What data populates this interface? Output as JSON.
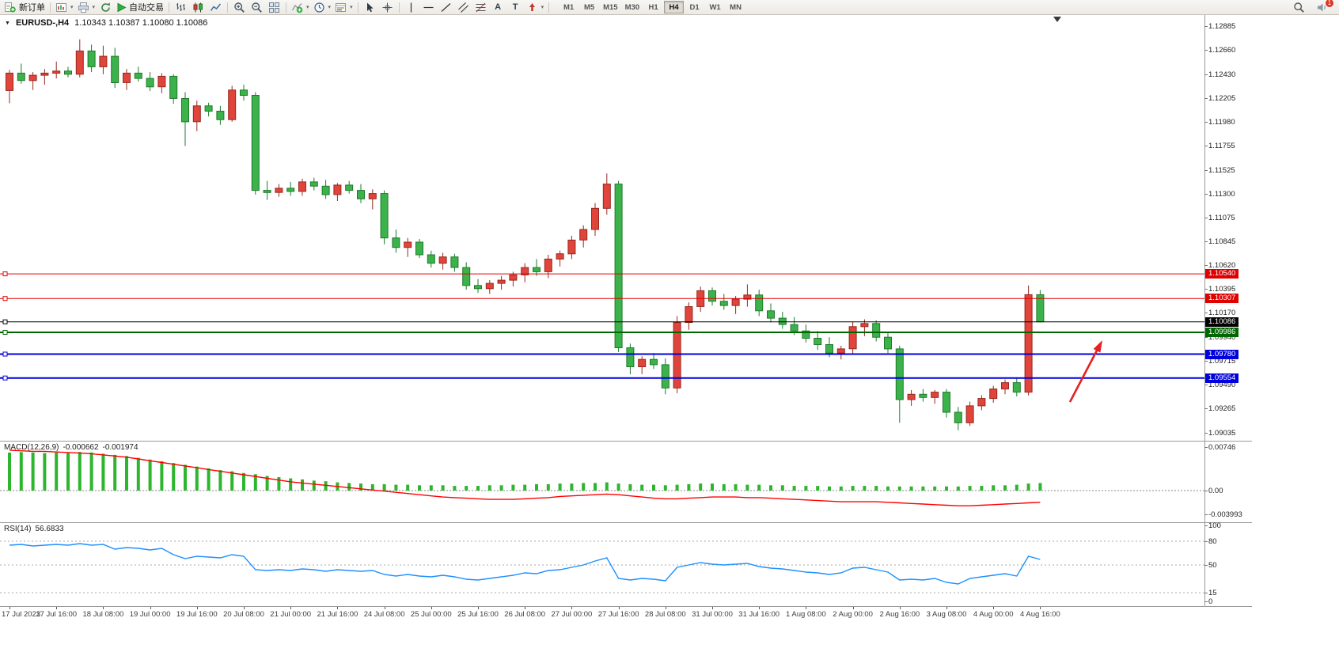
{
  "toolbar": {
    "new_order_label": "新订单",
    "auto_trading_label": "自动交易",
    "text_tool_label": "A",
    "label_tool_label": "T",
    "timeframes": [
      "M1",
      "M5",
      "M15",
      "M30",
      "H1",
      "H4",
      "D1",
      "W1",
      "MN"
    ],
    "active_timeframe": "H4",
    "notification_badge": "1"
  },
  "chart_header": {
    "symbol": "EURUSD-,H4",
    "ohlc": "1.10343 1.10387 1.10080 1.10086"
  },
  "price_axis_labels": [
    "1.12885",
    "1.12660",
    "1.12430",
    "1.12205",
    "1.11980",
    "1.11755",
    "1.11525",
    "1.11300",
    "1.11075",
    "1.10845",
    "1.10620",
    "1.10395",
    "1.10170",
    "1.09940",
    "1.09715",
    "1.09490",
    "1.09265",
    "1.09035"
  ],
  "price_tags": [
    {
      "text": "1.10540",
      "price": 1.1054,
      "bg": "#e00000"
    },
    {
      "text": "1.10307",
      "price": 1.10307,
      "bg": "#e00000"
    },
    {
      "text": "1.10086",
      "price": 1.10086,
      "bg": "#000000"
    },
    {
      "text": "1.09986",
      "price": 1.09986,
      "bg": "#006600"
    },
    {
      "text": "1.09780",
      "price": 1.0978,
      "bg": "#0000dd"
    },
    {
      "text": "1.09554",
      "price": 1.09554,
      "bg": "#0000dd"
    }
  ],
  "hlines": [
    {
      "price": 1.1054,
      "color": "#e00000",
      "w": 1
    },
    {
      "price": 1.10307,
      "color": "#e00000",
      "w": 1
    },
    {
      "price": 1.10086,
      "color": "#000000",
      "w": 1
    },
    {
      "price": 1.09986,
      "color": "#006600",
      "w": 2
    },
    {
      "price": 1.0978,
      "color": "#0000dd",
      "w": 2
    },
    {
      "price": 1.09554,
      "color": "#0000dd",
      "w": 2
    }
  ],
  "macd_panel": {
    "label": "MACD(12,26,9)",
    "value_main": "-0.000662",
    "value_signal": "-0.001974",
    "axis_labels": [
      "0.00746",
      "0.00",
      "-0.003993"
    ],
    "axis_values": [
      0.00746,
      0,
      -0.003993
    ],
    "histogram_color": "#2db52d",
    "signal_color": "#ff0000"
  },
  "rsi_panel": {
    "label": "RSI(14)",
    "value": "56.6833",
    "axis_labels": [
      "100",
      "80",
      "50",
      "15",
      "0"
    ],
    "axis_values": [
      100,
      80,
      50,
      15,
      0
    ],
    "levels": [
      80,
      50,
      15
    ],
    "line_color": "#1e90ff"
  },
  "time_axis": [
    "17 Jul 2023",
    "17 Jul 16:00",
    "18 Jul 08:00",
    "19 Jul 00:00",
    "19 Jul 16:00",
    "20 Jul 08:00",
    "21 Jul 00:00",
    "21 Jul 16:00",
    "24 Jul 08:00",
    "25 Jul 00:00",
    "25 Jul 16:00",
    "26 Jul 08:00",
    "27 Jul 00:00",
    "27 Jul 16:00",
    "28 Jul 08:00",
    "31 Jul 00:00",
    "31 Jul 16:00",
    "1 Aug 08:00",
    "2 Aug 00:00",
    "2 Aug 16:00",
    "3 Aug 08:00",
    "4 Aug 00:00",
    "4 Aug 16:00"
  ],
  "annotation_arrow": {
    "color": "#e62020"
  },
  "chart_data": {
    "type": "candlestick",
    "symbol": "EURUSD",
    "timeframe": "H4",
    "up_color": "#e0443a",
    "up_border": "#96281f",
    "down_color": "#3cb24a",
    "down_border": "#1e7a2b",
    "price_range": [
      1.0896,
      1.1299
    ],
    "candles": [
      [
        1.12275,
        1.1247,
        1.12155,
        1.1244
      ],
      [
        1.1244,
        1.1253,
        1.1234,
        1.1237
      ],
      [
        1.1237,
        1.1245,
        1.1228,
        1.1242
      ],
      [
        1.1242,
        1.1248,
        1.1233,
        1.1244
      ],
      [
        1.1244,
        1.1255,
        1.1239,
        1.1246
      ],
      [
        1.1246,
        1.125,
        1.124,
        1.1243
      ],
      [
        1.1243,
        1.1276,
        1.124,
        1.1265
      ],
      [
        1.1265,
        1.1271,
        1.1245,
        1.125
      ],
      [
        1.125,
        1.127,
        1.1243,
        1.126
      ],
      [
        1.126,
        1.1268,
        1.123,
        1.1235
      ],
      [
        1.1235,
        1.1248,
        1.1228,
        1.1244
      ],
      [
        1.1244,
        1.125,
        1.1236,
        1.1239
      ],
      [
        1.1239,
        1.1245,
        1.1227,
        1.1231
      ],
      [
        1.1231,
        1.1244,
        1.1225,
        1.1241
      ],
      [
        1.1241,
        1.1243,
        1.1215,
        1.122
      ],
      [
        1.122,
        1.1226,
        1.1175,
        1.1198
      ],
      [
        1.1198,
        1.1218,
        1.1189,
        1.1213
      ],
      [
        1.1213,
        1.1216,
        1.1203,
        1.1208
      ],
      [
        1.1208,
        1.1213,
        1.1195,
        1.12
      ],
      [
        1.12,
        1.1232,
        1.1198,
        1.1228
      ],
      [
        1.1228,
        1.1233,
        1.1218,
        1.1223
      ],
      [
        1.1223,
        1.1226,
        1.1129,
        1.1133
      ],
      [
        1.1133,
        1.1142,
        1.1124,
        1.1131
      ],
      [
        1.1131,
        1.1139,
        1.1127,
        1.1135
      ],
      [
        1.1135,
        1.1141,
        1.1128,
        1.1132
      ],
      [
        1.1132,
        1.1144,
        1.1128,
        1.1141
      ],
      [
        1.1141,
        1.1145,
        1.1133,
        1.1137
      ],
      [
        1.1137,
        1.1143,
        1.1125,
        1.1129
      ],
      [
        1.1129,
        1.114,
        1.1123,
        1.1138
      ],
      [
        1.1138,
        1.1142,
        1.113,
        1.1133
      ],
      [
        1.1133,
        1.1139,
        1.1121,
        1.1125
      ],
      [
        1.1125,
        1.1134,
        1.1115,
        1.113
      ],
      [
        1.113,
        1.1133,
        1.1082,
        1.1088
      ],
      [
        1.1088,
        1.1096,
        1.1074,
        1.1079
      ],
      [
        1.1079,
        1.1088,
        1.107,
        1.1084
      ],
      [
        1.1084,
        1.1087,
        1.1069,
        1.1072
      ],
      [
        1.1072,
        1.1076,
        1.106,
        1.1064
      ],
      [
        1.1064,
        1.1074,
        1.1058,
        1.107
      ],
      [
        1.107,
        1.1073,
        1.1056,
        1.106
      ],
      [
        1.106,
        1.1065,
        1.1039,
        1.1043
      ],
      [
        1.1043,
        1.1049,
        1.1036,
        1.104
      ],
      [
        1.104,
        1.1048,
        1.1035,
        1.1045
      ],
      [
        1.1045,
        1.1052,
        1.1039,
        1.1048
      ],
      [
        1.1048,
        1.1056,
        1.1042,
        1.1053
      ],
      [
        1.1053,
        1.1064,
        1.1046,
        1.106
      ],
      [
        1.106,
        1.1068,
        1.1052,
        1.1056
      ],
      [
        1.1056,
        1.1072,
        1.105,
        1.1068
      ],
      [
        1.1068,
        1.1076,
        1.1061,
        1.1073
      ],
      [
        1.1073,
        1.109,
        1.1068,
        1.1086
      ],
      [
        1.1086,
        1.11,
        1.1079,
        1.1096
      ],
      [
        1.1096,
        1.1121,
        1.109,
        1.1116
      ],
      [
        1.1116,
        1.1149,
        1.111,
        1.1139
      ],
      [
        1.1139,
        1.1142,
        1.098,
        1.0984
      ],
      [
        1.0984,
        1.0988,
        1.0959,
        1.0966
      ],
      [
        1.0966,
        1.0976,
        1.0959,
        1.0973
      ],
      [
        1.0973,
        1.0979,
        1.0964,
        1.0968
      ],
      [
        1.0968,
        1.0974,
        1.094,
        1.0946
      ],
      [
        1.0946,
        1.1014,
        1.0941,
        1.1008
      ],
      [
        1.1008,
        1.1027,
        1.1001,
        1.1023
      ],
      [
        1.1023,
        1.1042,
        1.1018,
        1.1038
      ],
      [
        1.1038,
        1.1041,
        1.1024,
        1.1028
      ],
      [
        1.1028,
        1.1035,
        1.102,
        1.1024
      ],
      [
        1.1024,
        1.1033,
        1.1016,
        1.103
      ],
      [
        1.103,
        1.1044,
        1.1023,
        1.1034
      ],
      [
        1.1034,
        1.1039,
        1.1014,
        1.1019
      ],
      [
        1.1019,
        1.1026,
        1.1008,
        1.1012
      ],
      [
        1.1012,
        1.1018,
        1.1002,
        1.1006
      ],
      [
        1.1006,
        1.1013,
        1.0996,
        1.1
      ],
      [
        1.1,
        1.1006,
        1.0989,
        1.0993
      ],
      [
        1.0993,
        1.1,
        1.0982,
        1.0987
      ],
      [
        1.0987,
        1.0994,
        1.0975,
        1.0979
      ],
      [
        1.0979,
        1.0986,
        1.0973,
        1.0983
      ],
      [
        1.0983,
        1.1009,
        1.0978,
        1.1004
      ],
      [
        1.1004,
        1.1011,
        1.0995,
        1.1007
      ],
      [
        1.1007,
        1.101,
        1.099,
        1.0994
      ],
      [
        1.0994,
        1.0998,
        1.0979,
        1.0983
      ],
      [
        1.0983,
        1.0986,
        1.0913,
        1.0935
      ],
      [
        1.0935,
        1.0944,
        1.0929,
        1.094
      ],
      [
        1.094,
        1.0945,
        1.0933,
        1.0937
      ],
      [
        1.0937,
        1.0944,
        1.0931,
        1.0942
      ],
      [
        1.0942,
        1.0945,
        1.0918,
        1.0923
      ],
      [
        1.0923,
        1.0928,
        1.0906,
        1.0913
      ],
      [
        1.0913,
        1.0933,
        1.091,
        1.0929
      ],
      [
        1.0929,
        1.0939,
        1.0925,
        1.0936
      ],
      [
        1.0936,
        1.0948,
        1.0932,
        1.0945
      ],
      [
        1.0945,
        1.0954,
        1.094,
        1.0951
      ],
      [
        1.0951,
        1.0956,
        1.0938,
        1.0942
      ],
      [
        1.0942,
        1.1043,
        1.0939,
        1.10343
      ],
      [
        1.10343,
        1.10387,
        1.1008,
        1.10086
      ]
    ],
    "macd_histogram": [
      0.0065,
      0.0066,
      0.0065,
      0.0064,
      0.0065,
      0.0064,
      0.0066,
      0.0065,
      0.0063,
      0.0061,
      0.0059,
      0.0056,
      0.0053,
      0.005,
      0.0047,
      0.0044,
      0.0041,
      0.0038,
      0.0035,
      0.0033,
      0.003,
      0.0028,
      0.0025,
      0.0023,
      0.0021,
      0.0019,
      0.0017,
      0.0016,
      0.0014,
      0.0013,
      0.0012,
      0.0011,
      0.0011,
      0.001,
      0.001,
      0.0009,
      0.0009,
      0.0009,
      0.0008,
      0.0008,
      0.0008,
      0.0009,
      0.0009,
      0.001,
      0.001,
      0.0011,
      0.0011,
      0.0012,
      0.0012,
      0.0013,
      0.0013,
      0.0014,
      0.0012,
      0.0011,
      0.001,
      0.001,
      0.0009,
      0.001,
      0.0011,
      0.0012,
      0.0012,
      0.0011,
      0.0011,
      0.001,
      0.001,
      0.0009,
      0.0009,
      0.0008,
      0.0008,
      0.0008,
      0.0007,
      0.0007,
      0.0008,
      0.0008,
      0.0008,
      0.0007,
      0.0007,
      0.0007,
      0.0007,
      0.0007,
      0.0007,
      0.0007,
      0.0008,
      0.0008,
      0.0009,
      0.0009,
      0.001,
      0.0012,
      0.0013
    ],
    "macd_signal": [
      0.0069,
      0.0068,
      0.0067,
      0.0067,
      0.0066,
      0.0065,
      0.0064,
      0.0063,
      0.0061,
      0.0059,
      0.0057,
      0.0054,
      0.0051,
      0.0048,
      0.0045,
      0.0042,
      0.0039,
      0.0036,
      0.0033,
      0.003,
      0.0027,
      0.0024,
      0.0021,
      0.0018,
      0.0015,
      0.0013,
      0.0011,
      0.0009,
      0.0007,
      0.0005,
      0.0003,
      0.0001,
      -0.0001,
      -0.0003,
      -0.0005,
      -0.0007,
      -0.0009,
      -0.0011,
      -0.0012,
      -0.0013,
      -0.0014,
      -0.0015,
      -0.0015,
      -0.0015,
      -0.0014,
      -0.0013,
      -0.0012,
      -0.001,
      -0.0009,
      -0.0008,
      -0.0007,
      -0.0006,
      -0.0007,
      -0.0009,
      -0.0011,
      -0.0013,
      -0.0014,
      -0.0014,
      -0.0013,
      -0.0012,
      -0.0011,
      -0.0011,
      -0.0011,
      -0.0012,
      -0.0012,
      -0.0013,
      -0.0014,
      -0.0015,
      -0.0016,
      -0.0017,
      -0.0018,
      -0.0019,
      -0.0019,
      -0.0019,
      -0.0019,
      -0.002,
      -0.0021,
      -0.0022,
      -0.0023,
      -0.0024,
      -0.0025,
      -0.0026,
      -0.0026,
      -0.0025,
      -0.0024,
      -0.0023,
      -0.0022,
      -0.0021,
      -0.002
    ],
    "rsi": [
      75,
      76,
      74,
      75,
      76,
      75,
      77,
      75,
      76,
      70,
      72,
      71,
      69,
      71,
      63,
      58,
      61,
      60,
      59,
      63,
      61,
      44,
      43,
      44,
      43,
      45,
      44,
      42,
      44,
      43,
      42,
      43,
      38,
      36,
      38,
      36,
      35,
      37,
      35,
      32,
      31,
      33,
      35,
      37,
      40,
      39,
      43,
      44,
      47,
      50,
      55,
      59,
      33,
      31,
      33,
      32,
      30,
      47,
      50,
      53,
      51,
      50,
      51,
      52,
      48,
      46,
      45,
      43,
      41,
      40,
      38,
      40,
      46,
      47,
      44,
      41,
      31,
      32,
      31,
      33,
      28,
      26,
      33,
      35,
      37,
      39,
      36,
      61,
      57
    ]
  }
}
